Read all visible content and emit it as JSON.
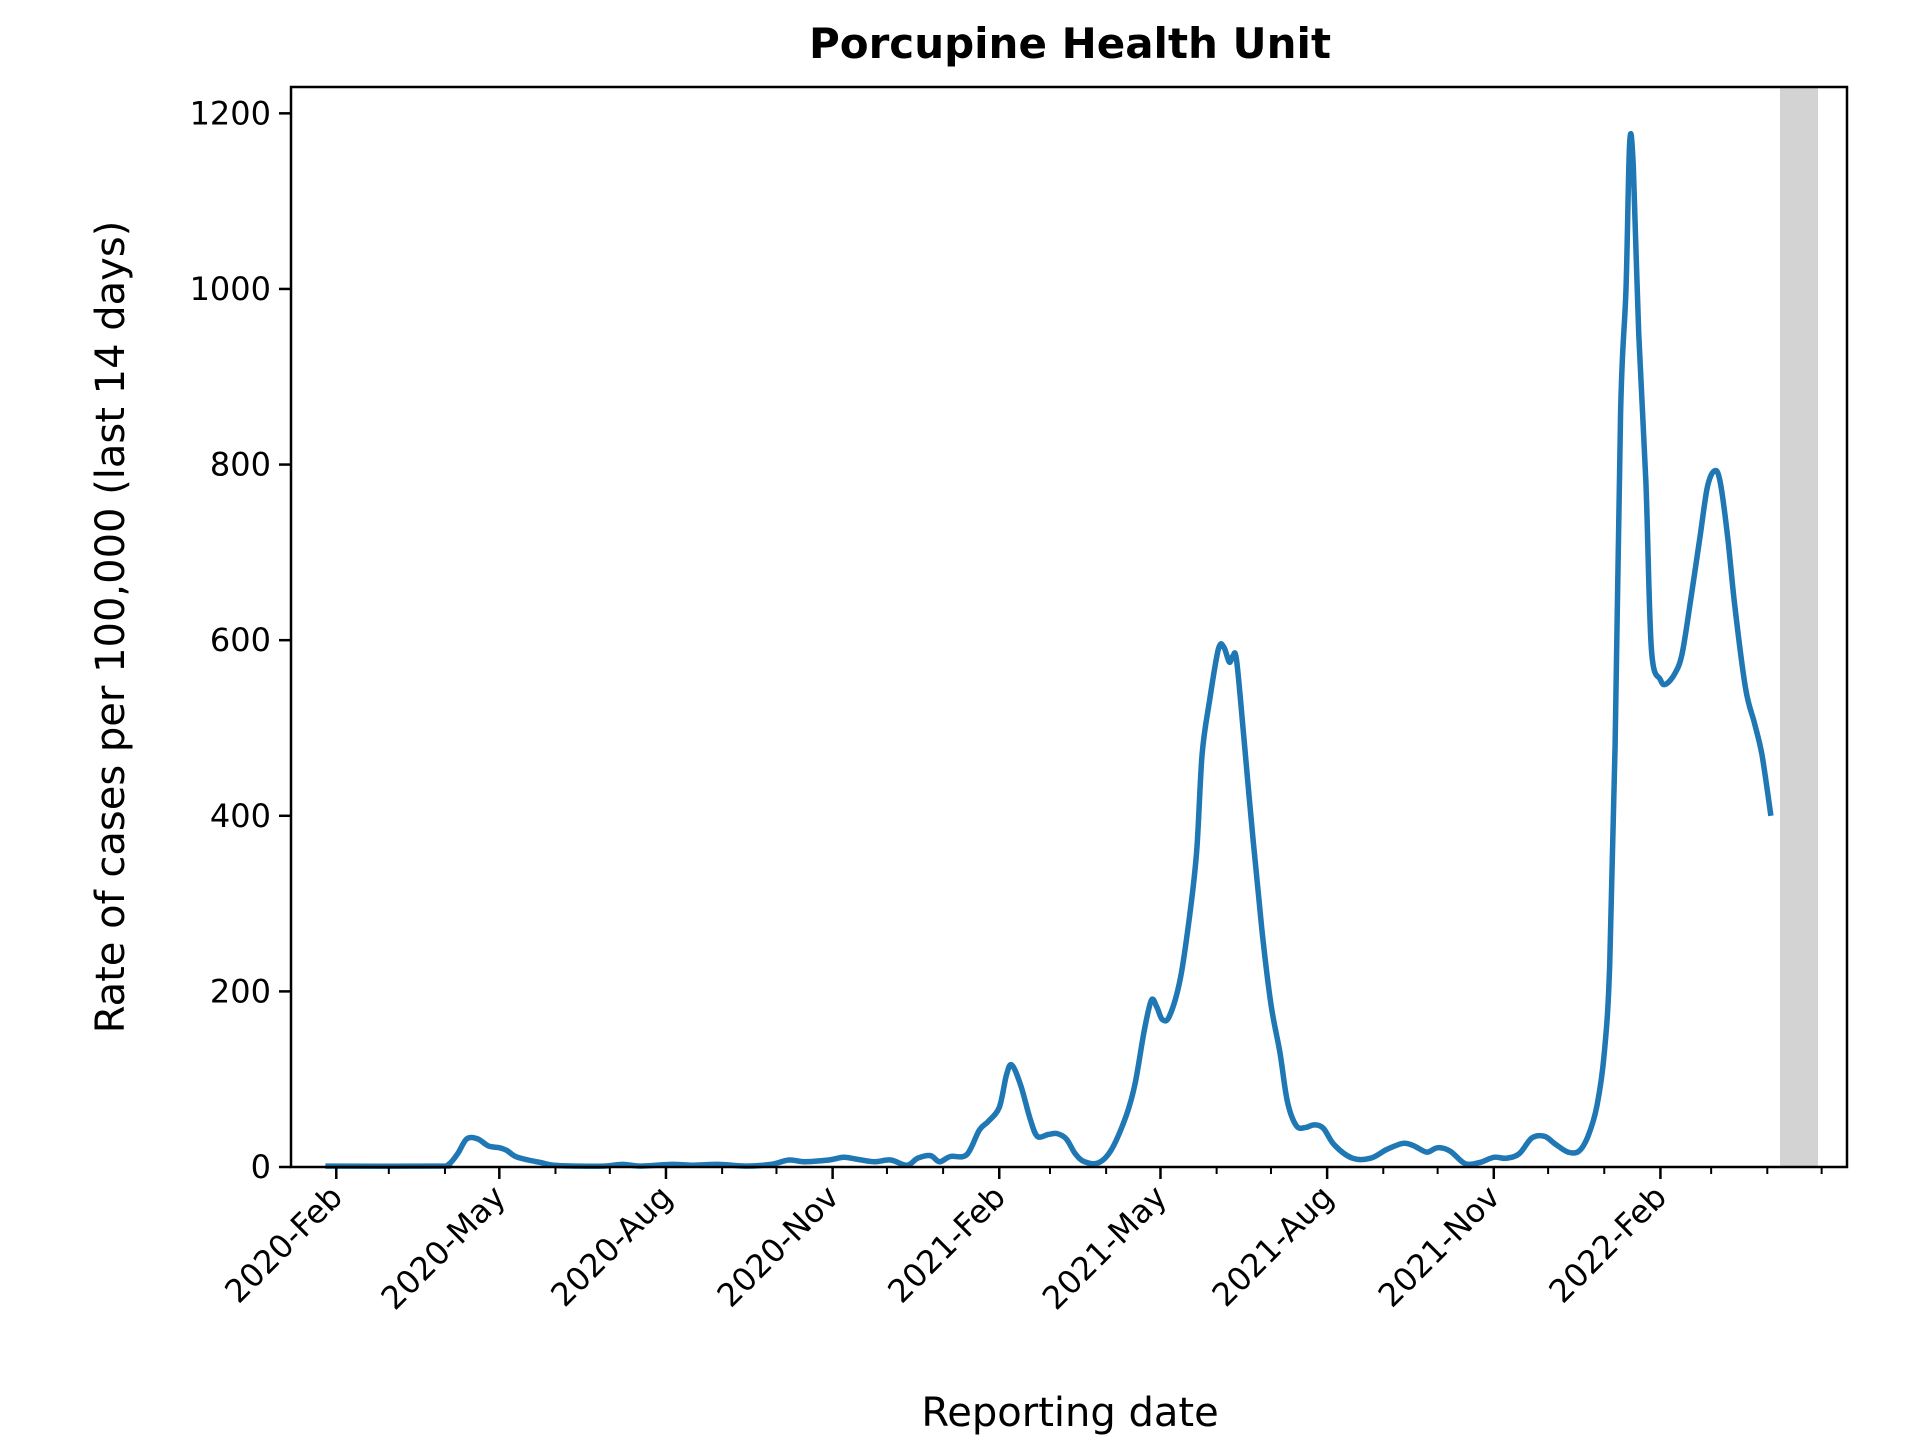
{
  "chart_data": {
    "type": "line",
    "title": "Porcupine Health Unit",
    "xlabel": "Reporting date",
    "ylabel": "Rate of cases per 100,000 (last 14 days)",
    "ylim": [
      0,
      1230
    ],
    "xlim": [
      "2020-01-07",
      "2022-05-15"
    ],
    "grid": false,
    "legend": "none",
    "y_ticks": [
      0,
      200,
      400,
      600,
      800,
      1000,
      1200
    ],
    "x_ticks": [
      {
        "date": "2020-02-01",
        "label": "2020-Feb"
      },
      {
        "date": "2020-05-01",
        "label": "2020-May"
      },
      {
        "date": "2020-08-01",
        "label": "2020-Aug"
      },
      {
        "date": "2020-11-01",
        "label": "2020-Nov"
      },
      {
        "date": "2021-02-01",
        "label": "2021-Feb"
      },
      {
        "date": "2021-05-01",
        "label": "2021-May"
      },
      {
        "date": "2021-08-01",
        "label": "2021-Aug"
      },
      {
        "date": "2021-11-01",
        "label": "2021-Nov"
      },
      {
        "date": "2022-02-01",
        "label": "2022-Feb"
      }
    ],
    "shaded_region": {
      "start": "2022-04-08",
      "end": "2022-04-29",
      "color": "#d3d3d3"
    },
    "line_color": "#1f77b4",
    "series": [
      {
        "points": [
          [
            "2020-01-26",
            1
          ],
          [
            "2020-03-28",
            1
          ],
          [
            "2020-04-03",
            3
          ],
          [
            "2020-04-08",
            15
          ],
          [
            "2020-04-13",
            32
          ],
          [
            "2020-04-19",
            32
          ],
          [
            "2020-04-25",
            24
          ],
          [
            "2020-05-01",
            22
          ],
          [
            "2020-05-05",
            19
          ],
          [
            "2020-05-10",
            12
          ],
          [
            "2020-05-17",
            8
          ],
          [
            "2020-05-24",
            5
          ],
          [
            "2020-05-31",
            2
          ],
          [
            "2020-06-14",
            1
          ],
          [
            "2020-06-28",
            1
          ],
          [
            "2020-07-08",
            3
          ],
          [
            "2020-07-18",
            1
          ],
          [
            "2020-08-04",
            3
          ],
          [
            "2020-08-15",
            2
          ],
          [
            "2020-08-30",
            3
          ],
          [
            "2020-09-14",
            1
          ],
          [
            "2020-09-28",
            3
          ],
          [
            "2020-10-08",
            8
          ],
          [
            "2020-10-16",
            6
          ],
          [
            "2020-10-30",
            8
          ],
          [
            "2020-11-07",
            11
          ],
          [
            "2020-11-14",
            9
          ],
          [
            "2020-11-24",
            6
          ],
          [
            "2020-12-03",
            8
          ],
          [
            "2020-12-12",
            2
          ],
          [
            "2020-12-18",
            10
          ],
          [
            "2020-12-25",
            13
          ],
          [
            "2020-12-30",
            6
          ],
          [
            "2021-01-05",
            12
          ],
          [
            "2021-01-14",
            14
          ],
          [
            "2021-01-21",
            42
          ],
          [
            "2021-01-26",
            52
          ],
          [
            "2021-02-01",
            68
          ],
          [
            "2021-02-05",
            105
          ],
          [
            "2021-02-08",
            116
          ],
          [
            "2021-02-13",
            92
          ],
          [
            "2021-02-18",
            55
          ],
          [
            "2021-02-22",
            35
          ],
          [
            "2021-02-28",
            37
          ],
          [
            "2021-03-05",
            38
          ],
          [
            "2021-03-10",
            32
          ],
          [
            "2021-03-15",
            15
          ],
          [
            "2021-03-20",
            6
          ],
          [
            "2021-03-28",
            5
          ],
          [
            "2021-04-04",
            20
          ],
          [
            "2021-04-12",
            58
          ],
          [
            "2021-04-17",
            95
          ],
          [
            "2021-04-22",
            155
          ],
          [
            "2021-04-26",
            190
          ],
          [
            "2021-04-29",
            182
          ],
          [
            "2021-05-02",
            168
          ],
          [
            "2021-05-06",
            172
          ],
          [
            "2021-05-12",
            215
          ],
          [
            "2021-05-17",
            285
          ],
          [
            "2021-05-21",
            360
          ],
          [
            "2021-05-24",
            470
          ],
          [
            "2021-05-28",
            530
          ],
          [
            "2021-06-02",
            590
          ],
          [
            "2021-06-05",
            592
          ],
          [
            "2021-06-08",
            575
          ],
          [
            "2021-06-10",
            582
          ],
          [
            "2021-06-12",
            577
          ],
          [
            "2021-06-16",
            490
          ],
          [
            "2021-06-21",
            375
          ],
          [
            "2021-06-26",
            270
          ],
          [
            "2021-07-01",
            185
          ],
          [
            "2021-07-06",
            130
          ],
          [
            "2021-07-10",
            75
          ],
          [
            "2021-07-15",
            47
          ],
          [
            "2021-07-20",
            45
          ],
          [
            "2021-07-25",
            48
          ],
          [
            "2021-07-30",
            44
          ],
          [
            "2021-08-05",
            25
          ],
          [
            "2021-08-15",
            10
          ],
          [
            "2021-08-25",
            10
          ],
          [
            "2021-09-03",
            20
          ],
          [
            "2021-09-12",
            27
          ],
          [
            "2021-09-18",
            24
          ],
          [
            "2021-09-25",
            17
          ],
          [
            "2021-10-01",
            22
          ],
          [
            "2021-10-08",
            18
          ],
          [
            "2021-10-16",
            4
          ],
          [
            "2021-10-24",
            5
          ],
          [
            "2021-11-01",
            11
          ],
          [
            "2021-11-08",
            10
          ],
          [
            "2021-11-15",
            15
          ],
          [
            "2021-11-22",
            33
          ],
          [
            "2021-11-29",
            35
          ],
          [
            "2021-12-05",
            26
          ],
          [
            "2021-12-12",
            17
          ],
          [
            "2021-12-18",
            18
          ],
          [
            "2021-12-23",
            35
          ],
          [
            "2021-12-28",
            70
          ],
          [
            "2022-01-01",
            130
          ],
          [
            "2022-01-04",
            230
          ],
          [
            "2022-01-07",
            480
          ],
          [
            "2022-01-10",
            860
          ],
          [
            "2022-01-13",
            1000
          ],
          [
            "2022-01-15",
            1165
          ],
          [
            "2022-01-17",
            1140
          ],
          [
            "2022-01-20",
            950
          ],
          [
            "2022-01-24",
            780
          ],
          [
            "2022-01-27",
            590
          ],
          [
            "2022-02-01",
            555
          ],
          [
            "2022-02-04",
            550
          ],
          [
            "2022-02-09",
            562
          ],
          [
            "2022-02-13",
            585
          ],
          [
            "2022-02-18",
            650
          ],
          [
            "2022-02-23",
            720
          ],
          [
            "2022-02-27",
            775
          ],
          [
            "2022-03-03",
            793
          ],
          [
            "2022-03-06",
            780
          ],
          [
            "2022-03-10",
            720
          ],
          [
            "2022-03-14",
            640
          ],
          [
            "2022-03-20",
            545
          ],
          [
            "2022-03-25",
            505
          ],
          [
            "2022-03-29",
            470
          ],
          [
            "2022-04-03",
            400
          ]
        ]
      }
    ]
  }
}
